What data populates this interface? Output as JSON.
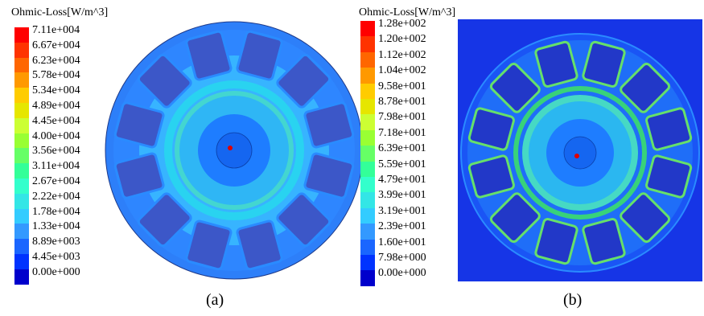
{
  "panels": [
    {
      "legend_title": "Ohmic-Loss[W/m^3]",
      "legend_values": [
        "7.11e+004",
        "6.67e+004",
        "6.23e+004",
        "5.78e+004",
        "5.34e+004",
        "4.89e+004",
        "4.45e+004",
        "4.00e+004",
        "3.56e+004",
        "3.11e+004",
        "2.67e+004",
        "2.22e+004",
        "1.78e+004",
        "1.33e+004",
        "8.89e+003",
        "4.45e+003",
        "0.00e+000"
      ],
      "caption": "(a)"
    },
    {
      "legend_title": "Ohmic-Loss[W/m^3]",
      "legend_values": [
        "1.28e+002",
        "1.20e+002",
        "1.12e+002",
        "1.04e+002",
        "9.58e+001",
        "8.78e+001",
        "7.98e+001",
        "7.18e+001",
        "6.39e+001",
        "5.59e+001",
        "4.79e+001",
        "3.99e+001",
        "3.19e+001",
        "2.39e+001",
        "1.60e+001",
        "7.98e+000",
        "0.00e+000"
      ],
      "caption": "(b)"
    }
  ],
  "colorscale": [
    "#ff0000",
    "#ff3300",
    "#ff6600",
    "#ff9900",
    "#ffcc00",
    "#e6e600",
    "#ccff33",
    "#99ff33",
    "#66ff66",
    "#33ff99",
    "#33ffcc",
    "#33e6e6",
    "#33ccff",
    "#3399ff",
    "#1a66ff",
    "#0033ff",
    "#0000cc"
  ]
}
